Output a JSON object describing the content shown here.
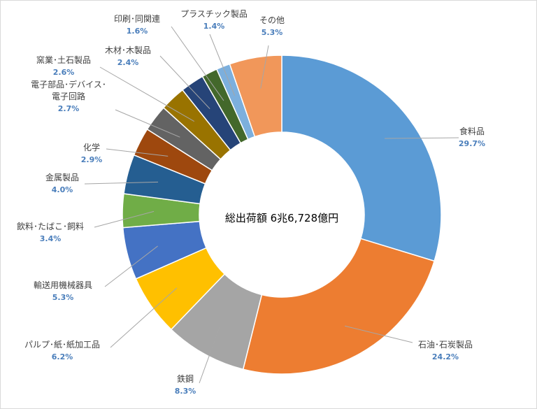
{
  "chart_data": {
    "type": "pie",
    "donut": true,
    "center_label": "総出荷額 6兆6,728億円",
    "slices": [
      {
        "label": "食料品",
        "value": 29.7,
        "pct_text": "29.7%",
        "color": "#5b9bd5"
      },
      {
        "label": "石油･石炭製品",
        "value": 24.2,
        "pct_text": "24.2%",
        "color": "#ed7d31"
      },
      {
        "label": "鉄鋼",
        "value": 8.3,
        "pct_text": "8.3%",
        "color": "#a5a5a5"
      },
      {
        "label": "パルプ･紙･紙加工品",
        "value": 6.2,
        "pct_text": "6.2%",
        "color": "#ffc000"
      },
      {
        "label": "輸送用機械器具",
        "value": 5.3,
        "pct_text": "5.3%",
        "color": "#4472c4"
      },
      {
        "label": "飲料･たばこ･飼料",
        "value": 3.4,
        "pct_text": "3.4%",
        "color": "#70ad47"
      },
      {
        "label": "金属製品",
        "value": 4.0,
        "pct_text": "4.0%",
        "color": "#255e91"
      },
      {
        "label": "化学",
        "value": 2.9,
        "pct_text": "2.9%",
        "color": "#9e480e"
      },
      {
        "label": "電子部品･デバイス･\n電子回路",
        "value": 2.7,
        "pct_text": "2.7%",
        "color": "#636363"
      },
      {
        "label": "窯業･土石製品",
        "value": 2.6,
        "pct_text": "2.6%",
        "color": "#997300"
      },
      {
        "label": "木材･木製品",
        "value": 2.4,
        "pct_text": "2.4%",
        "color": "#264478"
      },
      {
        "label": "印刷･同関連",
        "value": 1.6,
        "pct_text": "1.6%",
        "color": "#43682b"
      },
      {
        "label": "プラスチック製品",
        "value": 1.4,
        "pct_text": "1.4%",
        "color": "#7cafdd"
      },
      {
        "label": "その他",
        "value": 5.3,
        "pct_text": "5.3%",
        "color": "#f1975a"
      }
    ]
  }
}
